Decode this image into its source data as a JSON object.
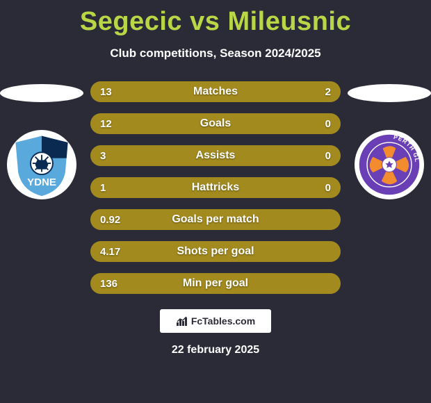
{
  "title": "Segecic vs Mileusnic",
  "subtitle": "Club competitions, Season 2024/2025",
  "date": "22 february 2025",
  "footer_logo_text": "FcTables.com",
  "colors": {
    "background": "#2a2b36",
    "title": "#b8d646",
    "text": "#ffffff",
    "bar_track": "#403f3c",
    "bar_fill": "#a28a1e",
    "ellipse": "#ffffff",
    "crest_bg": "#ffffff"
  },
  "crest_left": {
    "name": "sydney-fc-crest",
    "primary": "#5aa9dd",
    "secondary": "#0a2a52",
    "text": "YDNE"
  },
  "crest_right": {
    "name": "perth-glory-crest",
    "primary": "#6a3fb5",
    "secondary": "#f28c2e",
    "text": "PERTH GLORY"
  },
  "bars": [
    {
      "label": "Matches",
      "left_value": "13",
      "right_value": "2",
      "left_pct": 87,
      "right_pct": 13
    },
    {
      "label": "Goals",
      "left_value": "12",
      "right_value": "0",
      "left_pct": 100,
      "right_pct": 0
    },
    {
      "label": "Assists",
      "left_value": "3",
      "right_value": "0",
      "left_pct": 100,
      "right_pct": 0
    },
    {
      "label": "Hattricks",
      "left_value": "1",
      "right_value": "0",
      "left_pct": 100,
      "right_pct": 0
    },
    {
      "label": "Goals per match",
      "left_value": "0.92",
      "right_value": "",
      "left_pct": 100,
      "right_pct": 0
    },
    {
      "label": "Shots per goal",
      "left_value": "4.17",
      "right_value": "",
      "left_pct": 100,
      "right_pct": 0
    },
    {
      "label": "Min per goal",
      "left_value": "136",
      "right_value": "",
      "left_pct": 100,
      "right_pct": 0
    }
  ]
}
